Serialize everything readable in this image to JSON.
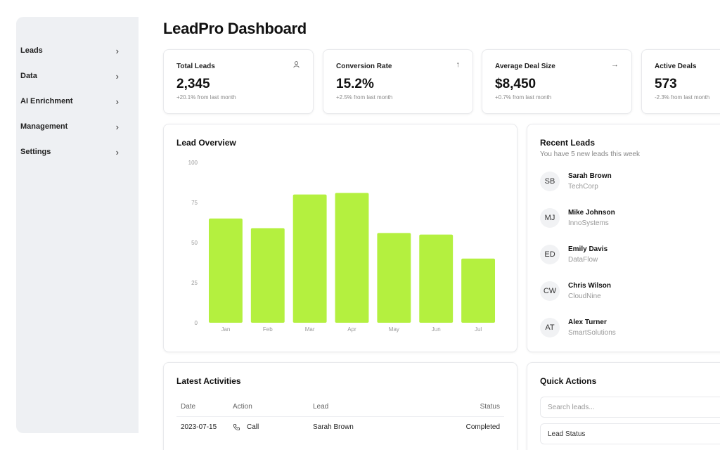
{
  "sidebar": {
    "items": [
      {
        "label": "Leads"
      },
      {
        "label": "Data"
      },
      {
        "label": "AI Enrichment"
      },
      {
        "label": "Management"
      },
      {
        "label": "Settings"
      }
    ]
  },
  "page": {
    "title": "LeadPro Dashboard"
  },
  "stats": [
    {
      "label": "Total Leads",
      "value": "2,345",
      "change": "+20.1% from last month",
      "icon": "user-icon"
    },
    {
      "label": "Conversion Rate",
      "value": "15.2%",
      "change": "+2.5% from last month",
      "icon": "arrow-up-icon"
    },
    {
      "label": "Average Deal Size",
      "value": "$8,450",
      "change": "+0.7% from last month",
      "icon": "arrow-right-icon"
    },
    {
      "label": "Active Deals",
      "value": "573",
      "change": "-2.3% from last month",
      "icon": ""
    }
  ],
  "overview": {
    "title": "Lead Overview"
  },
  "chart_data": {
    "type": "bar",
    "categories": [
      "Jan",
      "Feb",
      "Mar",
      "Apr",
      "May",
      "Jun",
      "Jul"
    ],
    "values": [
      65,
      59,
      80,
      81,
      56,
      55,
      40
    ],
    "ylim": [
      0,
      100
    ],
    "yticks": [
      0,
      25,
      50,
      75,
      100
    ],
    "grid": false,
    "bar_color": "#b4f03f"
  },
  "recent": {
    "title": "Recent Leads",
    "subtitle": "You have 5 new leads this week",
    "leads": [
      {
        "initials": "SB",
        "name": "Sarah Brown",
        "company": "TechCorp"
      },
      {
        "initials": "MJ",
        "name": "Mike Johnson",
        "company": "InnoSystems"
      },
      {
        "initials": "ED",
        "name": "Emily Davis",
        "company": "DataFlow"
      },
      {
        "initials": "CW",
        "name": "Chris Wilson",
        "company": "CloudNine"
      },
      {
        "initials": "AT",
        "name": "Alex Turner",
        "company": "SmartSolutions"
      }
    ]
  },
  "activities": {
    "title": "Latest Activities",
    "headers": {
      "date": "Date",
      "action": "Action",
      "lead": "Lead",
      "status": "Status"
    },
    "rows": [
      {
        "date": "2023-07-15",
        "action": "Call",
        "action_icon": "phone-icon",
        "lead": "Sarah Brown",
        "status": "Completed"
      }
    ]
  },
  "quick_actions": {
    "title": "Quick Actions",
    "search_placeholder": "Search leads...",
    "status_select": "Lead Status"
  }
}
